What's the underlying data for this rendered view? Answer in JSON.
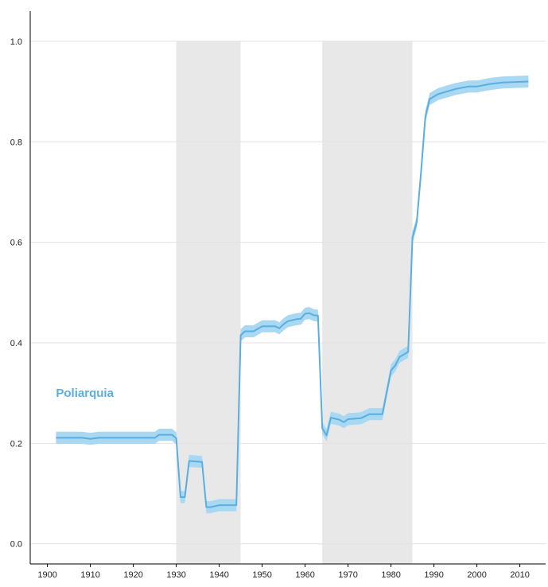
{
  "chart_data": {
    "type": "line",
    "title": "",
    "xlabel": "",
    "ylabel": "",
    "xlim": [
      1896,
      2016
    ],
    "ylim": [
      -0.04,
      1.06
    ],
    "x_ticks": [
      1900,
      1910,
      1920,
      1930,
      1940,
      1950,
      1960,
      1970,
      1980,
      1990,
      2000,
      2010
    ],
    "y_ticks": [
      0.0,
      0.2,
      0.4,
      0.6,
      0.8,
      1.0
    ],
    "y_tick_labels": [
      "0.0",
      "0.2",
      "0.4",
      "0.6",
      "0.8",
      "1.0"
    ],
    "grid": "horizontal",
    "shaded_periods": [
      {
        "start": 1930,
        "end": 1945
      },
      {
        "start": 1964,
        "end": 1985
      }
    ],
    "series": [
      {
        "name": "Poliarquia",
        "color": "#5aaee0",
        "band_color": "#a8d8f2",
        "points": [
          [
            1902,
            0.211
          ],
          [
            1908,
            0.211
          ],
          [
            1910,
            0.209
          ],
          [
            1912,
            0.211
          ],
          [
            1925,
            0.211
          ],
          [
            1926,
            0.217
          ],
          [
            1929,
            0.217
          ],
          [
            1930,
            0.21
          ],
          [
            1931,
            0.093
          ],
          [
            1932,
            0.093
          ],
          [
            1933,
            0.165
          ],
          [
            1936,
            0.163
          ],
          [
            1937,
            0.073
          ],
          [
            1938,
            0.073
          ],
          [
            1940,
            0.077
          ],
          [
            1944,
            0.077
          ],
          [
            1945,
            0.415
          ],
          [
            1946,
            0.423
          ],
          [
            1948,
            0.423
          ],
          [
            1950,
            0.433
          ],
          [
            1953,
            0.433
          ],
          [
            1954,
            0.429
          ],
          [
            1955,
            0.437
          ],
          [
            1956,
            0.443
          ],
          [
            1958,
            0.447
          ],
          [
            1959,
            0.448
          ],
          [
            1960,
            0.458
          ],
          [
            1961,
            0.459
          ],
          [
            1962,
            0.455
          ],
          [
            1963,
            0.454
          ],
          [
            1964,
            0.23
          ],
          [
            1965,
            0.216
          ],
          [
            1966,
            0.251
          ],
          [
            1968,
            0.247
          ],
          [
            1969,
            0.242
          ],
          [
            1970,
            0.248
          ],
          [
            1973,
            0.25
          ],
          [
            1975,
            0.258
          ],
          [
            1978,
            0.258
          ],
          [
            1980,
            0.345
          ],
          [
            1981,
            0.355
          ],
          [
            1982,
            0.372
          ],
          [
            1984,
            0.382
          ],
          [
            1985,
            0.61
          ],
          [
            1986,
            0.64
          ],
          [
            1987,
            0.74
          ],
          [
            1988,
            0.85
          ],
          [
            1989,
            0.885
          ],
          [
            1990,
            0.89
          ],
          [
            1991,
            0.895
          ],
          [
            1993,
            0.9
          ],
          [
            1995,
            0.905
          ],
          [
            1998,
            0.91
          ],
          [
            2000,
            0.91
          ],
          [
            2003,
            0.915
          ],
          [
            2006,
            0.918
          ],
          [
            2012,
            0.92
          ]
        ],
        "band_halfwidth": 0.012,
        "label_position": "left, near y=0.30"
      }
    ]
  }
}
